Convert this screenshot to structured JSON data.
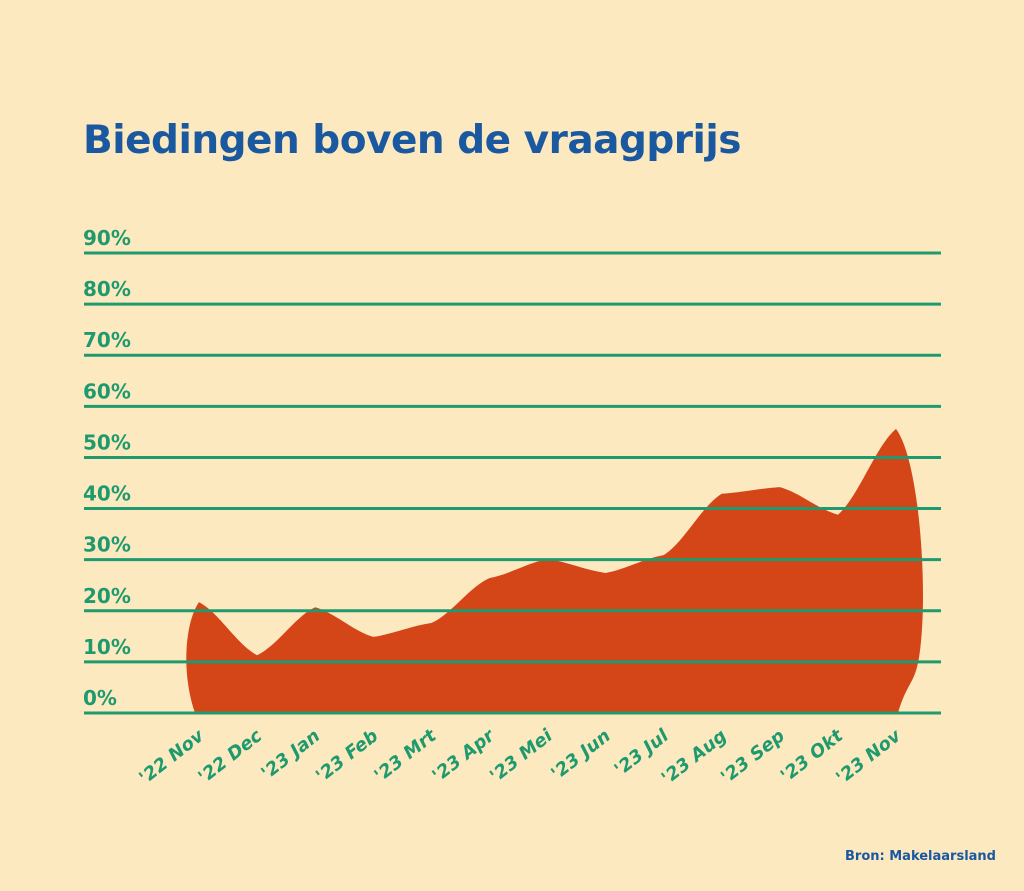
{
  "chart_data": {
    "type": "area",
    "title": "Biedingen boven de vraagprijs",
    "xlabel": "",
    "ylabel": "",
    "categories": [
      "'22 Nov",
      "'22 Dec",
      "'23 Jan",
      "'23 Feb",
      "'23 Mrt",
      "'23 Apr",
      "'23 Mei",
      "'23 Jun",
      "'23 Jul",
      "'23 Aug",
      "'23 Sep",
      "'23 Okt",
      "'23 Nov"
    ],
    "values": [
      21.7,
      11.3,
      20.7,
      14.9,
      17.6,
      26.4,
      30.1,
      27.4,
      30.9,
      42.9,
      44.2,
      38.8,
      55.6
    ],
    "yticks": [
      "0%",
      "10%",
      "20%",
      "30%",
      "40%",
      "50%",
      "60%",
      "70%",
      "80%",
      "90%"
    ],
    "ylim": [
      0,
      90
    ],
    "grid": true,
    "colors": {
      "background": "#fde9c0",
      "area": "#d44518",
      "grid": "#1f9a6e",
      "title": "#1a58a0"
    }
  },
  "source": "Bron: Makelaarsland"
}
